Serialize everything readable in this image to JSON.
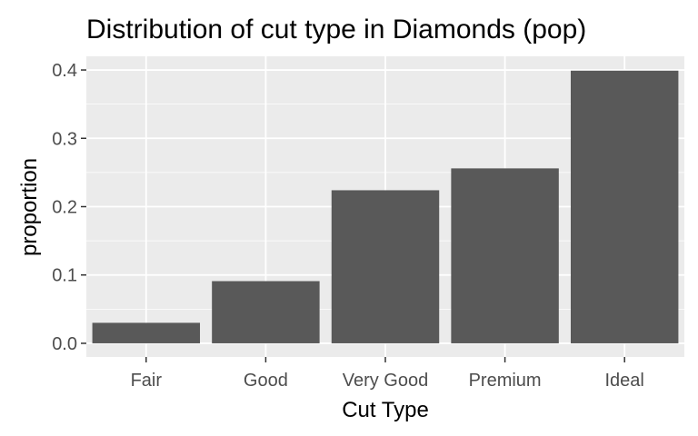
{
  "chart_data": {
    "type": "bar",
    "title": "Distribution of cut type in Diamonds (pop)",
    "xlabel": "Cut Type",
    "ylabel": "proportion",
    "categories": [
      "Fair",
      "Good",
      "Very Good",
      "Premium",
      "Ideal"
    ],
    "values": [
      0.03,
      0.091,
      0.224,
      0.256,
      0.399
    ],
    "ylim": [
      -0.02,
      0.42
    ],
    "yticks": [
      0.0,
      0.1,
      0.2,
      0.3,
      0.4
    ],
    "ytick_labels": [
      "0.0",
      "0.1",
      "0.2",
      "0.3",
      "0.4"
    ],
    "grid": true,
    "colors": {
      "bar": "#595959",
      "panel": "#ebebeb",
      "grid": "#ffffff",
      "tick": "#333333"
    }
  }
}
